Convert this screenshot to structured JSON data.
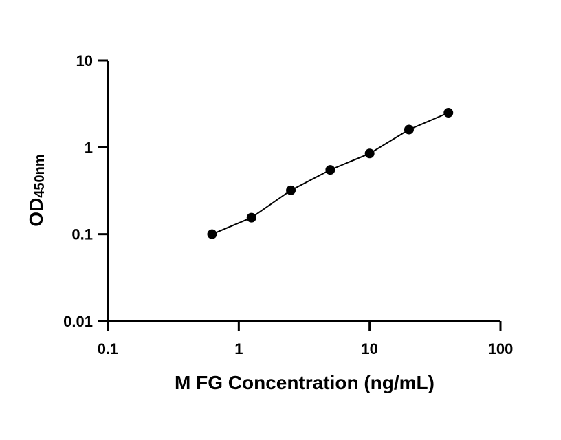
{
  "chart_data": {
    "type": "scatter",
    "xlabel": "M FG Concentration (ng/mL)",
    "ylabel": {
      "main": "OD",
      "sub": "450nm"
    },
    "xscale": "log",
    "yscale": "log",
    "xlim": [
      0.1,
      100
    ],
    "ylim": [
      0.01,
      10
    ],
    "xticks": [
      {
        "value": 0.1,
        "label": "0.1"
      },
      {
        "value": 1,
        "label": "1"
      },
      {
        "value": 10,
        "label": "10"
      },
      {
        "value": 100,
        "label": "100"
      }
    ],
    "yticks": [
      {
        "value": 0.01,
        "label": "0.01"
      },
      {
        "value": 0.1,
        "label": "0.1"
      },
      {
        "value": 1,
        "label": "1"
      },
      {
        "value": 10,
        "label": "10"
      }
    ],
    "x": [
      0.625,
      1.25,
      2.5,
      5,
      10,
      20,
      40
    ],
    "y": [
      0.1,
      0.155,
      0.32,
      0.55,
      0.85,
      1.6,
      2.5
    ],
    "fit_line": true,
    "grid": false,
    "color": "#000000"
  }
}
